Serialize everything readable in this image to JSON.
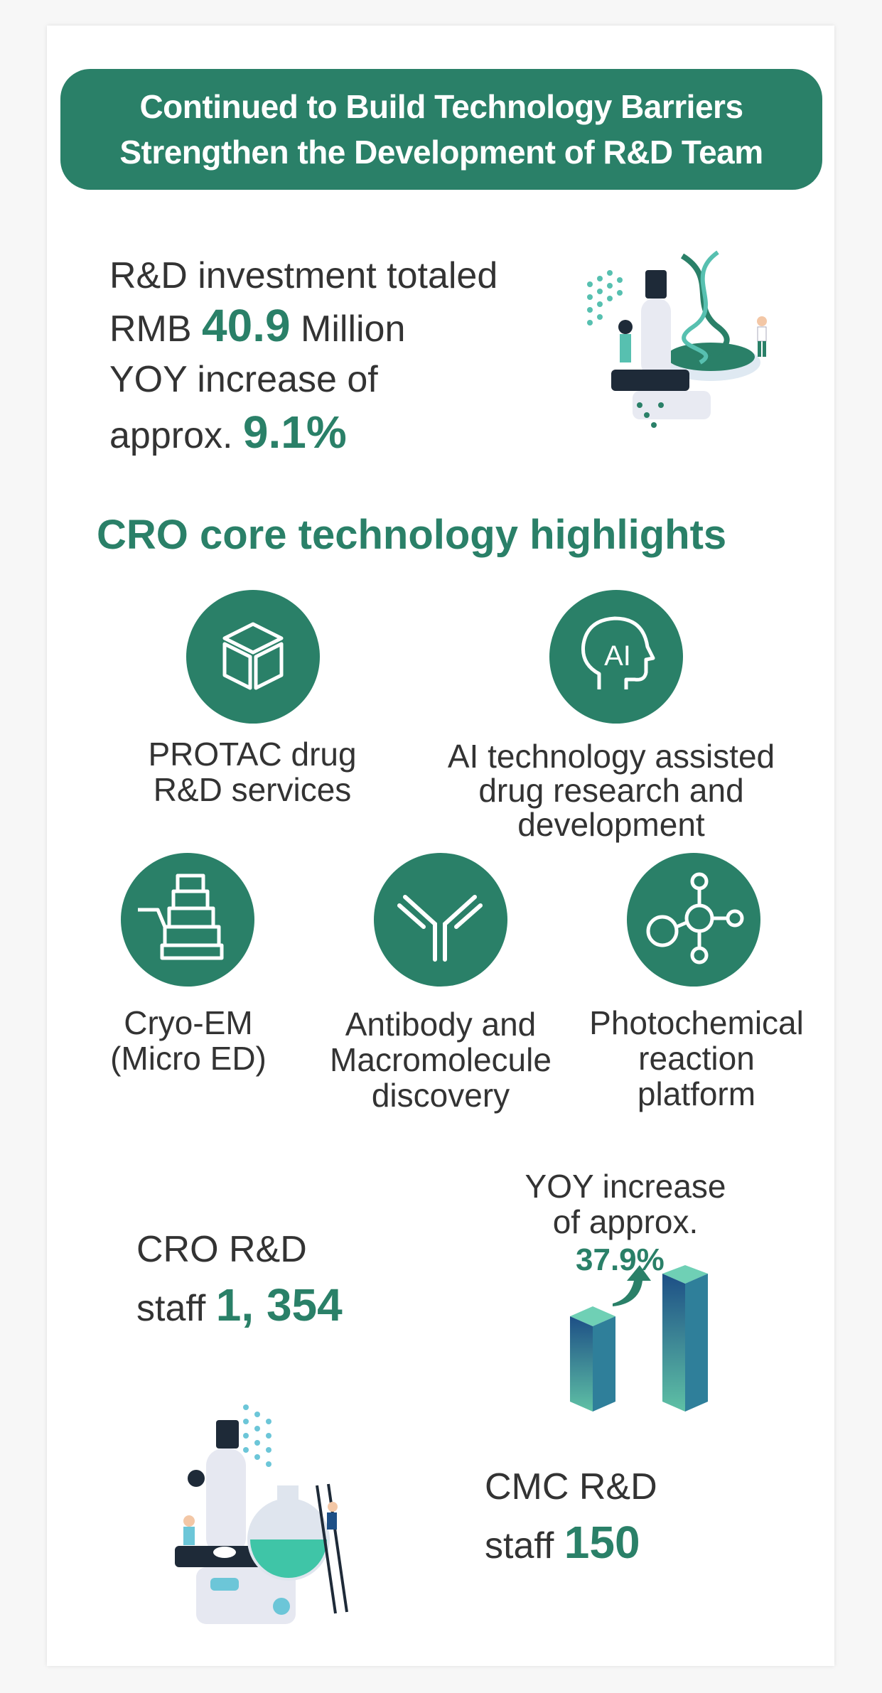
{
  "banner": {
    "line1": "Continued to Build Technology Barriers",
    "line2": "Strengthen the Development of R&D Team"
  },
  "investment": {
    "line1": "R&D investment totaled",
    "prefix": "RMB",
    "amount": "40.9",
    "unit": "Million",
    "line3": "YOY increase of",
    "approx": "approx.",
    "percent": "9.1%"
  },
  "section_title": "CRO core technology highlights",
  "highlights": [
    {
      "icon": "cube-icon",
      "line1": "PROTAC drug",
      "line2": "R&D services"
    },
    {
      "icon": "ai-head-icon",
      "line1": "AI technology assisted",
      "line2": "drug research and",
      "line3": "development"
    },
    {
      "icon": "cryo-em-icon",
      "line1": "Cryo-EM",
      "line2": "(Micro ED)"
    },
    {
      "icon": "antibody-icon",
      "line1": "Antibody and",
      "line2": "Macromolecule",
      "line3": "discovery"
    },
    {
      "icon": "molecule-node-icon",
      "line1": "Photochemical",
      "line2": "reaction",
      "line3": "platform"
    }
  ],
  "cro_staff": {
    "line1": "CRO R&D",
    "prefix": "staff",
    "value": "1, 354"
  },
  "growth": {
    "line1": "YOY increase",
    "line2": "of approx.",
    "percent": "37.9%"
  },
  "cmc_staff": {
    "line1": "CMC R&D",
    "prefix": "staff",
    "value": "150"
  },
  "colors": {
    "accent": "#2a8068",
    "text": "#333333",
    "bar_top": "#5fc1a5",
    "bar_dark": "#1d4f86"
  }
}
